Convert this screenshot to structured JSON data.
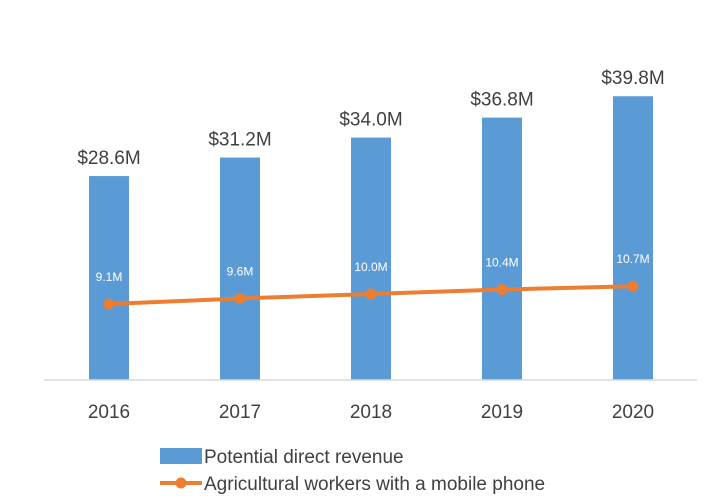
{
  "chart_data": {
    "type": "bar",
    "categories": [
      "2016",
      "2017",
      "2018",
      "2019",
      "2020"
    ],
    "series": [
      {
        "name": "Potential direct revenue",
        "type": "bar",
        "values": [
          28.6,
          31.2,
          34.0,
          36.8,
          39.8
        ],
        "labels": [
          "$28.6M",
          "$31.2M",
          "$34.0M",
          "$36.8M",
          "$39.8M"
        ],
        "color": "#5B9BD5"
      },
      {
        "name": "Agricultural workers with a mobile phone",
        "type": "line",
        "values": [
          9.1,
          9.6,
          10.0,
          10.4,
          10.7
        ],
        "labels": [
          "9.1M",
          "9.6M",
          "10.0M",
          "10.4M",
          "10.7M"
        ],
        "color": "#ED7D31"
      }
    ],
    "ylim": [
      0,
      46
    ],
    "grid": false,
    "legend_position": "bottom",
    "title": "",
    "xlabel": "",
    "ylabel": ""
  }
}
